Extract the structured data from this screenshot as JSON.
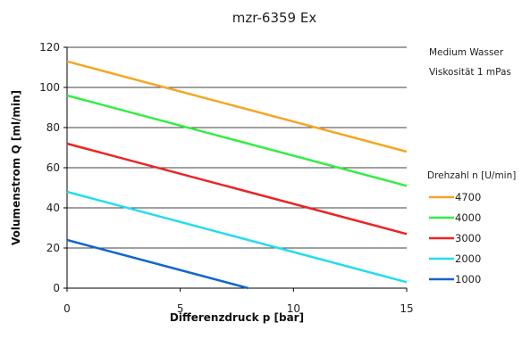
{
  "chart_data": {
    "type": "line",
    "title": "mzr-6359 Ex",
    "xlabel": "Differenzdruck p [bar]",
    "ylabel": "Volumenstrom Q [ml/min]",
    "xlim": [
      0,
      15
    ],
    "ylim": [
      0,
      120
    ],
    "x_ticks": [
      "0",
      "5",
      "10",
      "15"
    ],
    "y_ticks": [
      "0",
      "20",
      "40",
      "60",
      "80",
      "100",
      "120"
    ],
    "grid": "horizontal",
    "notes": [
      "Medium Wasser",
      "Viskosität 1 mPas"
    ],
    "legend_title": "Drehzahl n [U/min]",
    "legend_position": "right",
    "series": [
      {
        "name": "4700",
        "color": "#F5A623",
        "points": [
          [
            0,
            113
          ],
          [
            15,
            68
          ]
        ]
      },
      {
        "name": "4000",
        "color": "#33EE44",
        "points": [
          [
            0,
            96
          ],
          [
            15,
            51
          ]
        ]
      },
      {
        "name": "3000",
        "color": "#EE2222",
        "points": [
          [
            0,
            72
          ],
          [
            15,
            27
          ]
        ]
      },
      {
        "name": "2000",
        "color": "#22DDEE",
        "points": [
          [
            0,
            48
          ],
          [
            15,
            3
          ]
        ]
      },
      {
        "name": "1000",
        "color": "#1166CC",
        "points": [
          [
            0,
            24
          ],
          [
            8,
            0
          ]
        ]
      }
    ]
  }
}
